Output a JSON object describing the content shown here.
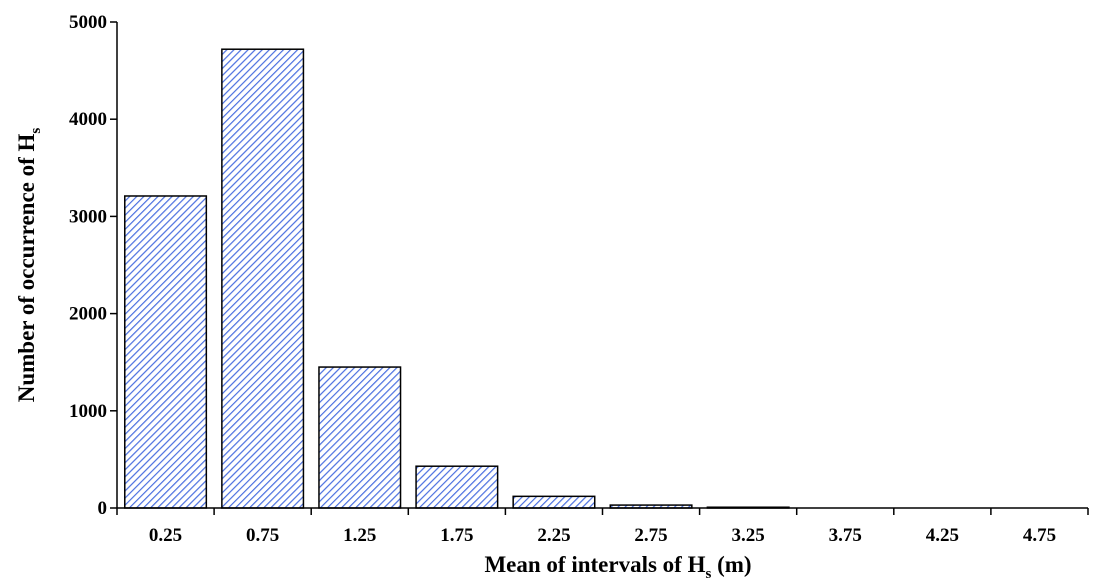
{
  "chart_data": {
    "type": "bar",
    "categories": [
      "0.25",
      "0.75",
      "1.25",
      "1.75",
      "2.25",
      "2.75",
      "3.25",
      "3.75",
      "4.25",
      "4.75"
    ],
    "values": [
      3210,
      4720,
      1450,
      430,
      120,
      30,
      8,
      0,
      0,
      0
    ],
    "xlabel": {
      "main": "Mean of intervals of H",
      "sub": "s",
      "tail": " (m)"
    },
    "ylabel": {
      "main": "Number of occurrence of H",
      "sub": "s"
    },
    "ylim": [
      0,
      5000
    ],
    "yticks": [
      "0",
      "1000",
      "2000",
      "3000",
      "4000",
      "5000"
    ],
    "grid": false,
    "bar_fill": "hatched blue diagonal",
    "colors": {
      "hatch": "#4a6fe0",
      "bar_bg": "#ffffff",
      "outline": "#000000",
      "axis": "#000000"
    }
  }
}
